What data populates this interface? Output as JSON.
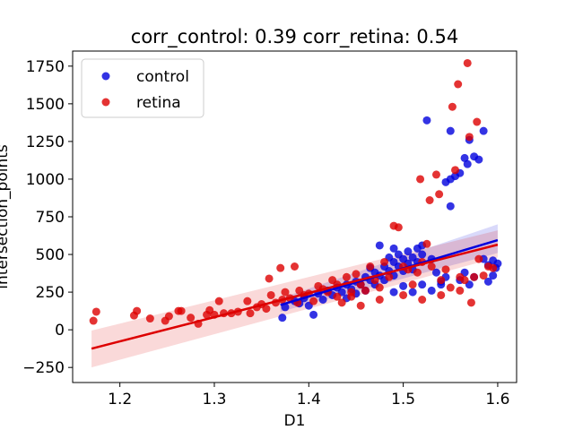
{
  "chart_data": {
    "type": "scatter",
    "title": "corr_control: 0.39  corr_retina: 0.54",
    "xlabel": "D1",
    "ylabel": "intersection_points",
    "xlim": [
      1.15,
      1.62
    ],
    "ylim": [
      -350,
      1850
    ],
    "xticks": [
      1.2,
      1.3,
      1.4,
      1.5,
      1.6
    ],
    "yticks": [
      -250,
      0,
      250,
      500,
      750,
      1000,
      1250,
      1500,
      1750
    ],
    "legend_position": "upper left",
    "grid": false,
    "series": [
      {
        "name": "control",
        "color": "#0000dd",
        "regression": {
          "x": [
            1.37,
            1.6
          ],
          "y": [
            165,
            595
          ],
          "ci_low": [
            120,
            510
          ],
          "ci_high": [
            210,
            700
          ]
        },
        "points": [
          [
            1.372,
            80
          ],
          [
            1.375,
            150
          ],
          [
            1.385,
            190
          ],
          [
            1.39,
            175
          ],
          [
            1.395,
            210
          ],
          [
            1.4,
            160
          ],
          [
            1.405,
            100
          ],
          [
            1.41,
            240
          ],
          [
            1.415,
            200
          ],
          [
            1.42,
            260
          ],
          [
            1.425,
            230
          ],
          [
            1.43,
            280
          ],
          [
            1.435,
            250
          ],
          [
            1.44,
            300
          ],
          [
            1.44,
            210
          ],
          [
            1.445,
            270
          ],
          [
            1.45,
            320
          ],
          [
            1.45,
            240
          ],
          [
            1.455,
            300
          ],
          [
            1.46,
            350
          ],
          [
            1.46,
            260
          ],
          [
            1.465,
            330
          ],
          [
            1.465,
            410
          ],
          [
            1.47,
            380
          ],
          [
            1.47,
            300
          ],
          [
            1.475,
            360
          ],
          [
            1.475,
            560
          ],
          [
            1.48,
            420
          ],
          [
            1.48,
            330
          ],
          [
            1.485,
            480
          ],
          [
            1.485,
            390
          ],
          [
            1.49,
            450
          ],
          [
            1.49,
            360
          ],
          [
            1.49,
            540
          ],
          [
            1.495,
            500
          ],
          [
            1.495,
            420
          ],
          [
            1.5,
            470
          ],
          [
            1.5,
            390
          ],
          [
            1.505,
            520
          ],
          [
            1.505,
            440
          ],
          [
            1.51,
            480
          ],
          [
            1.51,
            400
          ],
          [
            1.515,
            540
          ],
          [
            1.515,
            450
          ],
          [
            1.52,
            500
          ],
          [
            1.52,
            560
          ],
          [
            1.525,
            1390
          ],
          [
            1.53,
            470
          ],
          [
            1.535,
            380
          ],
          [
            1.54,
            300
          ],
          [
            1.545,
            980
          ],
          [
            1.545,
            350
          ],
          [
            1.55,
            1320
          ],
          [
            1.55,
            820
          ],
          [
            1.55,
            1000
          ],
          [
            1.555,
            1020
          ],
          [
            1.56,
            330
          ],
          [
            1.56,
            1040
          ],
          [
            1.565,
            1140
          ],
          [
            1.565,
            380
          ],
          [
            1.568,
            1100
          ],
          [
            1.57,
            1260
          ],
          [
            1.57,
            300
          ],
          [
            1.575,
            1150
          ],
          [
            1.575,
            350
          ],
          [
            1.58,
            1130
          ],
          [
            1.585,
            1320
          ],
          [
            1.585,
            470
          ],
          [
            1.59,
            320
          ],
          [
            1.59,
            430
          ],
          [
            1.595,
            460
          ],
          [
            1.595,
            360
          ],
          [
            1.598,
            410
          ],
          [
            1.6,
            440
          ],
          [
            1.49,
            250
          ],
          [
            1.5,
            290
          ],
          [
            1.51,
            250
          ],
          [
            1.52,
            300
          ],
          [
            1.53,
            260
          ],
          [
            1.54,
            320
          ]
        ]
      },
      {
        "name": "retina",
        "color": "#dd0000",
        "regression": {
          "x": [
            1.17,
            1.6
          ],
          "y": [
            -125,
            565
          ],
          "ci_low": [
            -250,
            480
          ],
          "ci_high": [
            -5,
            660
          ]
        },
        "points": [
          [
            1.172,
            60
          ],
          [
            1.175,
            120
          ],
          [
            1.215,
            95
          ],
          [
            1.218,
            125
          ],
          [
            1.232,
            75
          ],
          [
            1.248,
            60
          ],
          [
            1.252,
            90
          ],
          [
            1.262,
            125
          ],
          [
            1.265,
            125
          ],
          [
            1.275,
            80
          ],
          [
            1.283,
            40
          ],
          [
            1.292,
            100
          ],
          [
            1.295,
            130
          ],
          [
            1.3,
            100
          ],
          [
            1.305,
            190
          ],
          [
            1.31,
            110
          ],
          [
            1.318,
            110
          ],
          [
            1.325,
            120
          ],
          [
            1.335,
            190
          ],
          [
            1.338,
            110
          ],
          [
            1.345,
            150
          ],
          [
            1.35,
            170
          ],
          [
            1.355,
            140
          ],
          [
            1.358,
            340
          ],
          [
            1.36,
            230
          ],
          [
            1.365,
            180
          ],
          [
            1.37,
            410
          ],
          [
            1.372,
            200
          ],
          [
            1.375,
            250
          ],
          [
            1.38,
            210
          ],
          [
            1.385,
            420
          ],
          [
            1.388,
            180
          ],
          [
            1.39,
            260
          ],
          [
            1.395,
            230
          ],
          [
            1.4,
            240
          ],
          [
            1.405,
            190
          ],
          [
            1.41,
            290
          ],
          [
            1.415,
            270
          ],
          [
            1.42,
            250
          ],
          [
            1.425,
            330
          ],
          [
            1.43,
            300
          ],
          [
            1.435,
            180
          ],
          [
            1.44,
            350
          ],
          [
            1.445,
            220
          ],
          [
            1.45,
            370
          ],
          [
            1.455,
            300
          ],
          [
            1.46,
            260
          ],
          [
            1.465,
            420
          ],
          [
            1.47,
            330
          ],
          [
            1.475,
            280
          ],
          [
            1.48,
            450
          ],
          [
            1.485,
            350
          ],
          [
            1.49,
            690
          ],
          [
            1.495,
            680
          ],
          [
            1.5,
            420
          ],
          [
            1.505,
            400
          ],
          [
            1.51,
            300
          ],
          [
            1.515,
            380
          ],
          [
            1.52,
            450
          ],
          [
            1.525,
            570
          ],
          [
            1.53,
            420
          ],
          [
            1.535,
            1030
          ],
          [
            1.538,
            900
          ],
          [
            1.54,
            330
          ],
          [
            1.545,
            400
          ],
          [
            1.55,
            280
          ],
          [
            1.552,
            1480
          ],
          [
            1.555,
            1060
          ],
          [
            1.558,
            1630
          ],
          [
            1.56,
            350
          ],
          [
            1.565,
            330
          ],
          [
            1.568,
            1770
          ],
          [
            1.57,
            1280
          ],
          [
            1.572,
            180
          ],
          [
            1.575,
            350
          ],
          [
            1.578,
            1380
          ],
          [
            1.58,
            470
          ],
          [
            1.585,
            360
          ],
          [
            1.59,
            420
          ],
          [
            1.595,
            410
          ],
          [
            1.518,
            1000
          ],
          [
            1.528,
            860
          ],
          [
            1.5,
            230
          ],
          [
            1.475,
            200
          ],
          [
            1.455,
            160
          ],
          [
            1.445,
            250
          ],
          [
            1.43,
            220
          ],
          [
            1.52,
            200
          ],
          [
            1.54,
            230
          ],
          [
            1.56,
            260
          ]
        ]
      }
    ]
  }
}
